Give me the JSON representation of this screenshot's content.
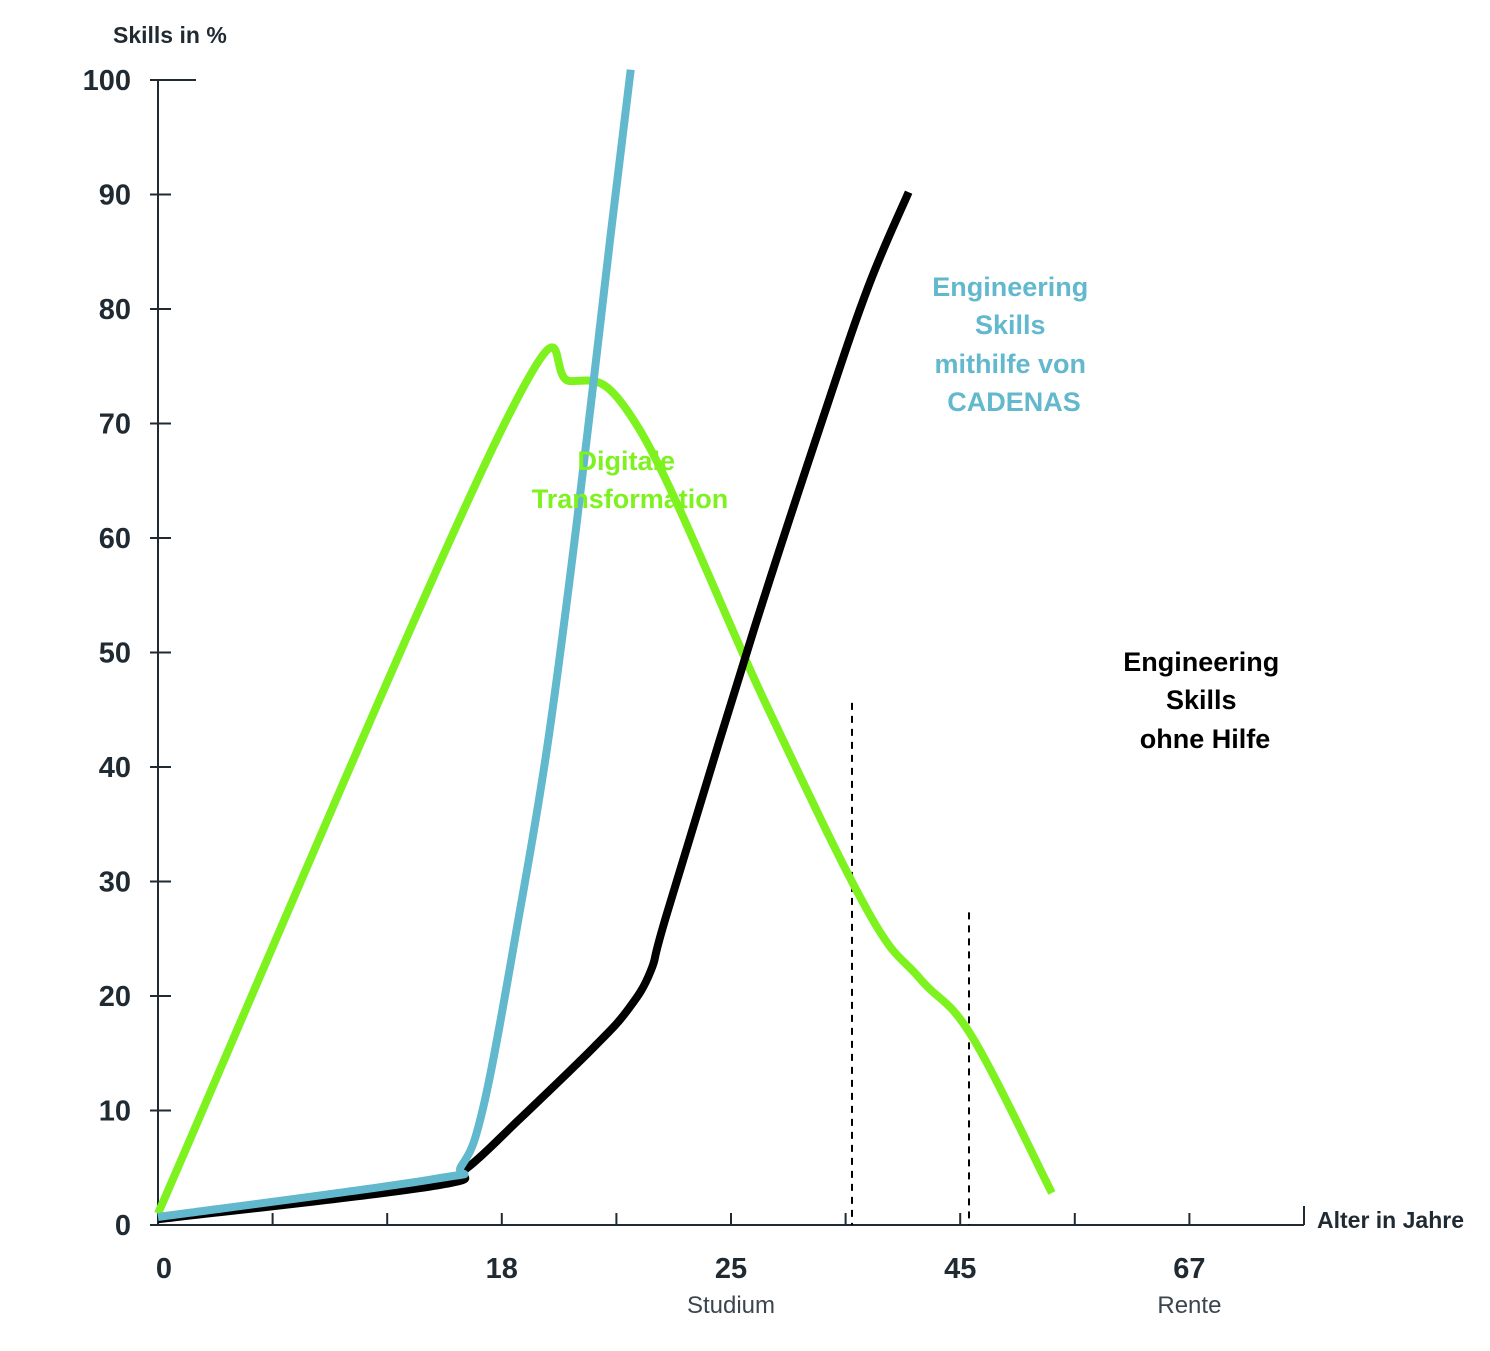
{
  "chart_data": {
    "type": "line",
    "ylabel": "Skills in %",
    "xlabel": "Alter in Jahre",
    "ylim": [
      0,
      100
    ],
    "y_ticks": [
      "100",
      "90",
      "80",
      "70",
      "60",
      "50",
      "40",
      "30",
      "20",
      "10",
      "0"
    ],
    "x_ticks": [
      {
        "label": "0",
        "sub": ""
      },
      {
        "label": "18",
        "sub": ""
      },
      {
        "label": "25",
        "sub": "Studium"
      },
      {
        "label": "45",
        "sub": ""
      },
      {
        "label": "67",
        "sub": "Rente"
      }
    ],
    "series": [
      {
        "name": "Digitale Transformation",
        "label_lines": [
          "Digitale",
          "Transformation"
        ],
        "color": "#7ef21f",
        "points": [
          [
            0,
            1
          ],
          [
            6,
            69.5
          ],
          [
            7.2,
            73.7
          ],
          [
            8.4,
            69.5
          ],
          [
            10.6,
            45.6
          ],
          [
            12.4,
            27.3
          ],
          [
            13.3,
            21.5
          ],
          [
            14.2,
            16.5
          ],
          [
            15.6,
            2.8
          ]
        ]
      },
      {
        "name": "Engineering Skills mithilfe von CADENAS",
        "label_lines": [
          "Engineering",
          "Skills",
          "mithilfe von",
          "CADENAS"
        ],
        "color": "#62b8cc",
        "points": [
          [
            0,
            0.7
          ],
          [
            4.8,
            4.0
          ],
          [
            5.3,
            5.2
          ],
          [
            5.7,
            10.8
          ],
          [
            6.3,
            27.0
          ],
          [
            6.8,
            42.0
          ],
          [
            7.3,
            61.0
          ],
          [
            7.9,
            86.5
          ],
          [
            8.25,
            100.9
          ]
        ]
      },
      {
        "name": "Engineering Skills ohne Hilfe",
        "label_lines": [
          "Engineering",
          "Skills",
          "ohne Hilfe"
        ],
        "color": "#000000",
        "points": [
          [
            0,
            0.5
          ],
          [
            4.8,
            3.4
          ],
          [
            5.4,
            5.0
          ],
          [
            6.3,
            9.2
          ],
          [
            7.6,
            15.5
          ],
          [
            8.2,
            18.8
          ],
          [
            8.6,
            22.2
          ],
          [
            8.9,
            27.5
          ],
          [
            10.4,
            52.0
          ],
          [
            11.6,
            70.4
          ],
          [
            12.4,
            82.0
          ],
          [
            13.1,
            90.2
          ]
        ]
      }
    ],
    "reference_lines": [
      {
        "x": 6.0,
        "y": 45.6
      },
      {
        "x": 7.1,
        "y": 27.3
      }
    ]
  }
}
